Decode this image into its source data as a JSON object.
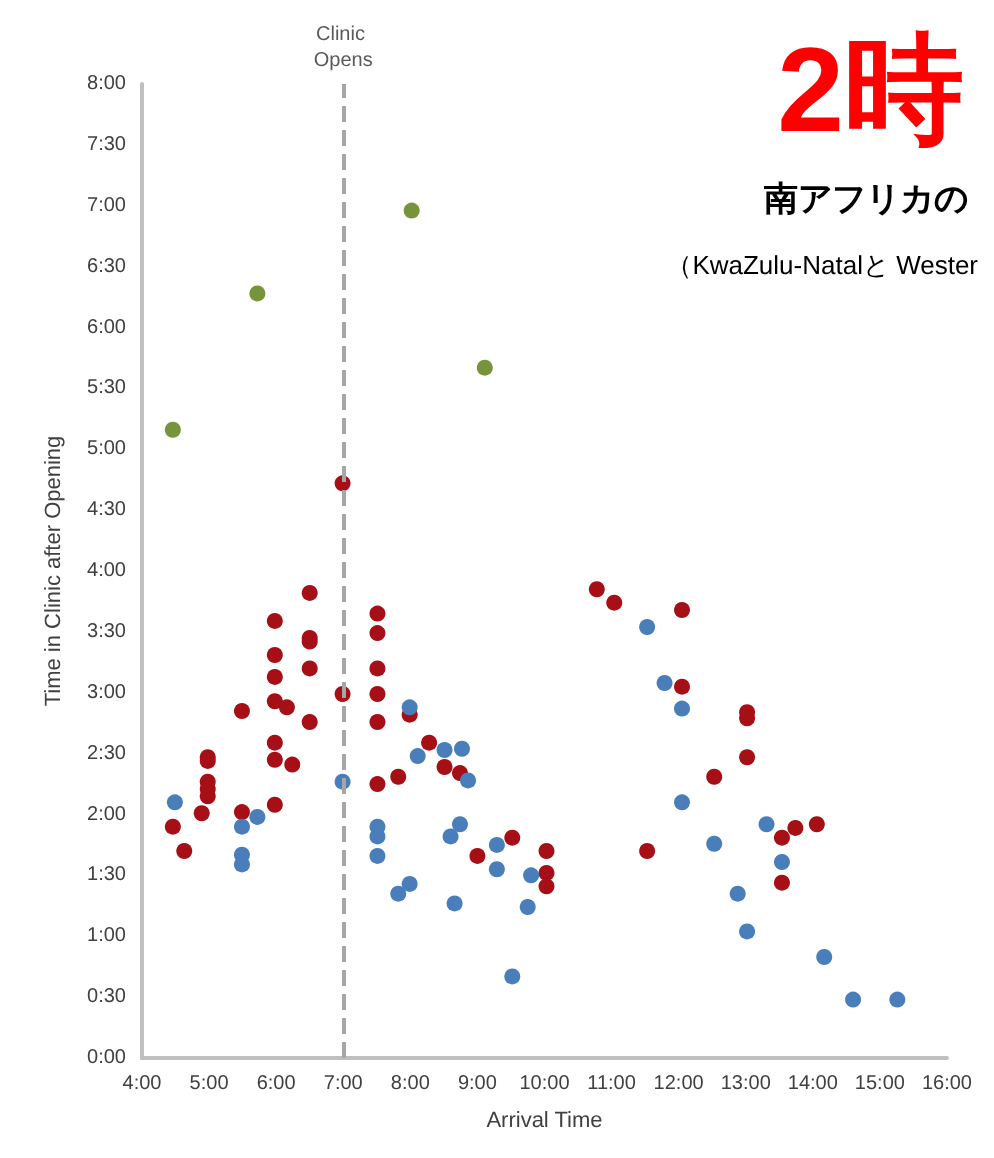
{
  "chart_data": {
    "type": "scatter",
    "title": "2時",
    "subtitle": "南アフリカの",
    "annotations": [
      "（KwaZulu-Natalと Wester"
    ],
    "xlabel": "Arrival Time",
    "ylabel": "Time in Clinic after Opening",
    "marker": "circle",
    "grid": false,
    "xlim": [
      4,
      16
    ],
    "xticks": [
      {
        "value": 4,
        "label": "4:00"
      },
      {
        "value": 5,
        "label": "5:00"
      },
      {
        "value": 6,
        "label": "6:00"
      },
      {
        "value": 7,
        "label": "7:00"
      },
      {
        "value": 8,
        "label": "8:00"
      },
      {
        "value": 9,
        "label": "9:00"
      },
      {
        "value": 10,
        "label": "10:00"
      },
      {
        "value": 11,
        "label": "11:00"
      },
      {
        "value": 12,
        "label": "12:00"
      },
      {
        "value": 13,
        "label": "13:00"
      },
      {
        "value": 14,
        "label": "14:00"
      },
      {
        "value": 15,
        "label": "15:00"
      },
      {
        "value": 16,
        "label": "16:00"
      }
    ],
    "ylim": [
      0,
      8
    ],
    "yticks": [
      {
        "value": 0,
        "label": "0:00"
      },
      {
        "value": 0.5,
        "label": "0:30"
      },
      {
        "value": 1,
        "label": "1:00"
      },
      {
        "value": 1.5,
        "label": "1:30"
      },
      {
        "value": 2,
        "label": "2:00"
      },
      {
        "value": 2.5,
        "label": "2:30"
      },
      {
        "value": 3,
        "label": "3:00"
      },
      {
        "value": 3.5,
        "label": "3:30"
      },
      {
        "value": 4,
        "label": "4:00"
      },
      {
        "value": 4.5,
        "label": "4:30"
      },
      {
        "value": 5,
        "label": "5:00"
      },
      {
        "value": 5.5,
        "label": "5:30"
      },
      {
        "value": 6,
        "label": "6:00"
      },
      {
        "value": 6.5,
        "label": "6:30"
      },
      {
        "value": 7,
        "label": "7:00"
      },
      {
        "value": 7.5,
        "label": "7:30"
      },
      {
        "value": 8,
        "label": "8:00"
      }
    ],
    "ref_lines": [
      {
        "axis": "x",
        "value": 7,
        "label": "Clinic Opens",
        "color": "#a6a6a6",
        "line_style": "dashed"
      }
    ],
    "series": [
      {
        "color": "#77933c",
        "x": [
          4.46,
          5.72,
          8.02,
          9.11
        ],
        "values": [
          5.16,
          6.28,
          6.96,
          5.67
        ]
      },
      {
        "color": "#a50f15",
        "x": [
          6.5,
          7.51,
          5.98,
          7.51,
          6.5,
          6.5,
          5.98,
          6.5,
          7.51,
          5.98,
          6.99,
          7.51,
          5.98,
          6.16,
          5.49,
          7.99,
          6.5,
          7.51,
          8.28,
          5.98,
          4.98,
          4.98,
          5.98,
          6.24,
          8.51,
          8.74,
          7.82,
          4.98,
          7.51,
          4.98,
          4.98,
          5.98,
          4.89,
          5.49,
          4.46,
          4.63,
          9.0,
          9.52,
          6.99,
          10.78,
          11.04,
          12.05,
          12.05,
          13.02,
          13.02,
          13.02,
          12.53,
          14.06,
          13.74,
          13.54,
          13.54,
          11.53,
          10.03,
          10.03,
          10.03
        ],
        "values": [
          3.82,
          3.65,
          3.59,
          3.49,
          3.45,
          3.42,
          3.31,
          3.2,
          3.2,
          3.13,
          2.99,
          2.99,
          2.93,
          2.88,
          2.85,
          2.82,
          2.76,
          2.76,
          2.59,
          2.59,
          2.47,
          2.44,
          2.45,
          2.41,
          2.39,
          2.34,
          2.31,
          2.27,
          2.25,
          2.21,
          2.15,
          2.08,
          2.01,
          2.02,
          1.9,
          1.7,
          1.66,
          1.81,
          4.72,
          3.85,
          3.74,
          3.68,
          3.05,
          2.84,
          2.79,
          2.47,
          2.31,
          1.92,
          1.89,
          1.81,
          1.44,
          1.7,
          1.7,
          1.52,
          1.41
        ]
      },
      {
        "color": "#4a7ebb",
        "x": [
          4.49,
          5.49,
          5.72,
          5.49,
          5.49,
          6.99,
          7.99,
          8.11,
          8.51,
          8.77,
          8.86,
          7.51,
          7.51,
          7.51,
          8.6,
          8.74,
          7.82,
          7.99,
          8.66,
          9.29,
          9.29,
          9.8,
          9.75,
          9.52,
          11.53,
          11.79,
          12.05,
          12.05,
          13.31,
          12.53,
          13.54,
          12.88,
          13.02,
          14.17,
          14.6,
          15.26
        ],
        "values": [
          2.1,
          1.9,
          1.98,
          1.67,
          1.59,
          2.27,
          2.88,
          2.48,
          2.53,
          2.54,
          2.28,
          1.9,
          1.82,
          1.66,
          1.82,
          1.92,
          1.35,
          1.43,
          1.27,
          1.75,
          1.55,
          1.5,
          1.24,
          0.67,
          3.54,
          3.08,
          2.87,
          2.1,
          1.92,
          1.76,
          1.61,
          1.35,
          1.04,
          0.83,
          0.48,
          0.48
        ]
      }
    ]
  }
}
